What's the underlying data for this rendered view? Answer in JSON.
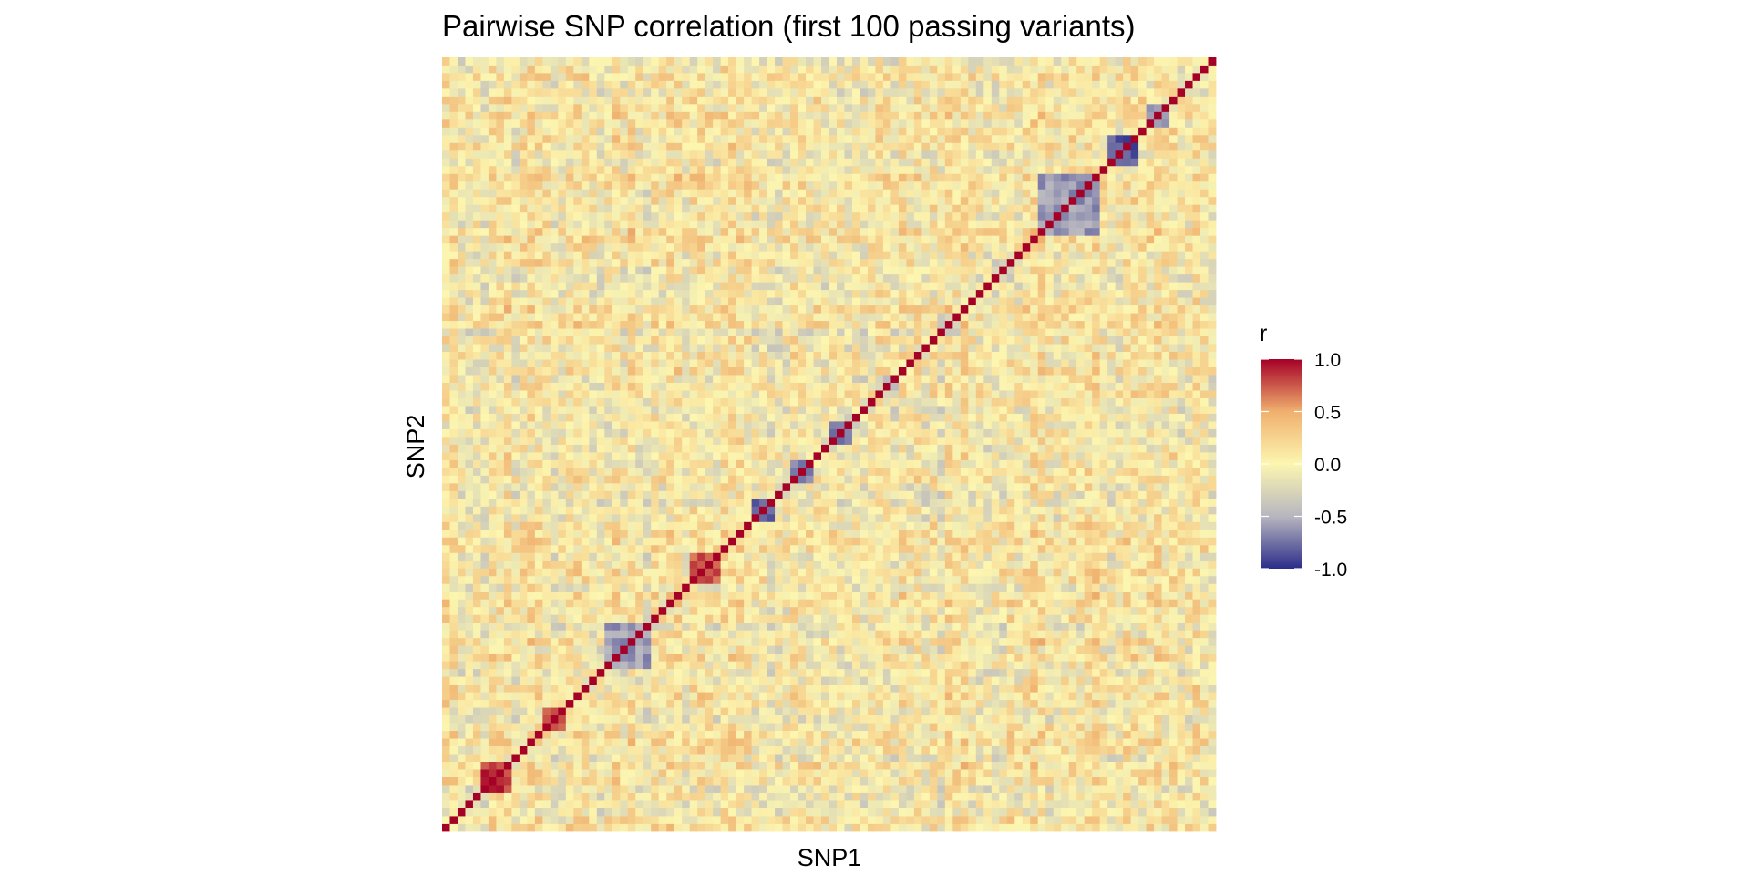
{
  "chart_data": {
    "type": "heatmap",
    "title": "Pairwise SNP correlation (first 100 passing variants)",
    "xlabel": "SNP1",
    "ylabel": "SNP2",
    "n_variants": 100,
    "matrix_symmetric": true,
    "diagonal_value": 1.0,
    "off_diagonal_typical_range": [
      -0.5,
      0.5
    ],
    "x_tick_labels_shown": false,
    "y_tick_labels_shown": false,
    "ld_blocks": [
      {
        "start": 5,
        "end": 8,
        "r": 0.85
      },
      {
        "start": 13,
        "end": 15,
        "r": 0.7
      },
      {
        "start": 21,
        "end": 26,
        "r": -0.6
      },
      {
        "start": 32,
        "end": 35,
        "r": 0.75
      },
      {
        "start": 40,
        "end": 42,
        "r": -0.8
      },
      {
        "start": 45,
        "end": 47,
        "r": -0.7
      },
      {
        "start": 50,
        "end": 52,
        "r": -0.75
      },
      {
        "start": 56,
        "end": 58,
        "r": -0.35
      },
      {
        "start": 64,
        "end": 66,
        "r": -0.3
      },
      {
        "start": 71,
        "end": 73,
        "r": -0.35
      },
      {
        "start": 77,
        "end": 84,
        "r": -0.6
      },
      {
        "start": 86,
        "end": 89,
        "r": -0.85
      },
      {
        "start": 91,
        "end": 93,
        "r": -0.6
      }
    ],
    "legend": {
      "title": "r",
      "position": "right",
      "ticks": [
        1.0,
        0.5,
        0.0,
        -0.5,
        -1.0
      ],
      "tick_labels": [
        "1.0",
        "0.5",
        "0.0",
        "-0.5",
        "-1.0"
      ],
      "limits": [
        -1,
        1
      ]
    },
    "colors": {
      "high": "#a50026",
      "mid_high": "#f0b06e",
      "mid": "#fcf6b0",
      "mid_low": "#b7b6bf",
      "low": "#2b2c8a"
    }
  }
}
